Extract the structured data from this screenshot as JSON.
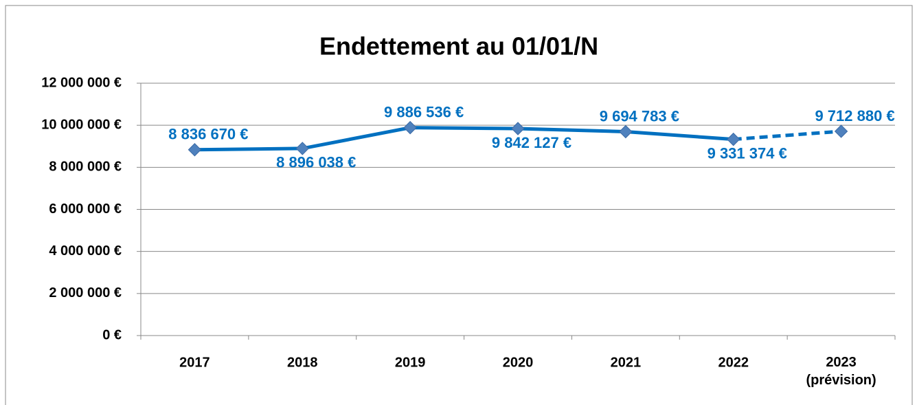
{
  "chart_data": {
    "type": "line",
    "title": "Endettement au 01/01/N",
    "categories": [
      "2017",
      "2018",
      "2019",
      "2020",
      "2021",
      "2022",
      "2023\n(prévision)"
    ],
    "series": [
      {
        "color": "#0070c0",
        "marker_color": "#4f81bd",
        "values": [
          8836670,
          8896038,
          9886536,
          9842127,
          9694783,
          9331374,
          9712880
        ],
        "value_labels": [
          "8 836 670 €",
          "8 896 038 €",
          "9 886 536 €",
          "9 842 127 €",
          "9 694 783 €",
          "9 331 374 €",
          "9 712 880 €"
        ]
      }
    ],
    "dash_last_segment": true,
    "ylim": [
      0,
      12000000
    ],
    "yticks": [
      {
        "value": 0,
        "label": "0 €"
      },
      {
        "value": 2000000,
        "label": "2 000 000 €"
      },
      {
        "value": 4000000,
        "label": "4 000 000 €"
      },
      {
        "value": 6000000,
        "label": "6 000 000 €"
      },
      {
        "value": 8000000,
        "label": "8 000 000 €"
      },
      {
        "value": 10000000,
        "label": "10 000 000 €"
      },
      {
        "value": 12000000,
        "label": "12 000 000 €"
      }
    ],
    "grid": true
  }
}
